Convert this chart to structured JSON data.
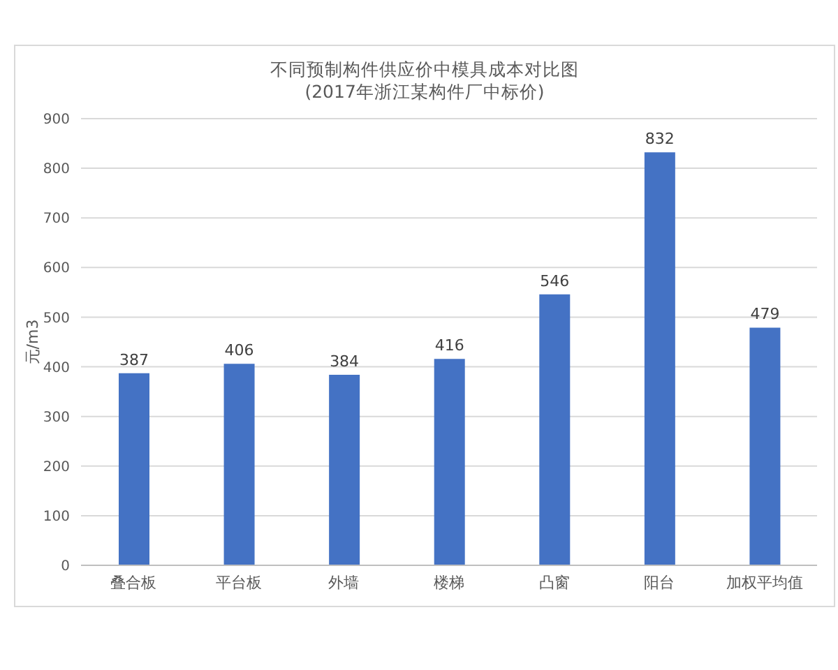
{
  "chart_data": {
    "type": "bar",
    "title": "不同预制构件供应价中模具成本对比图",
    "subtitle": "(2017年浙江某构件厂中标价)",
    "ylabel": "元/m3",
    "categories": [
      "叠合板",
      "平台板",
      "外墙",
      "楼梯",
      "凸窗",
      "阳台",
      "加权平均值"
    ],
    "values": [
      387,
      406,
      384,
      416,
      546,
      832,
      479
    ],
    "color": "#4472c4",
    "ylim": [
      0,
      900
    ],
    "yticks": [
      0,
      100,
      200,
      300,
      400,
      500,
      600,
      700,
      800,
      900
    ],
    "grid": "y",
    "data_labels": true
  }
}
